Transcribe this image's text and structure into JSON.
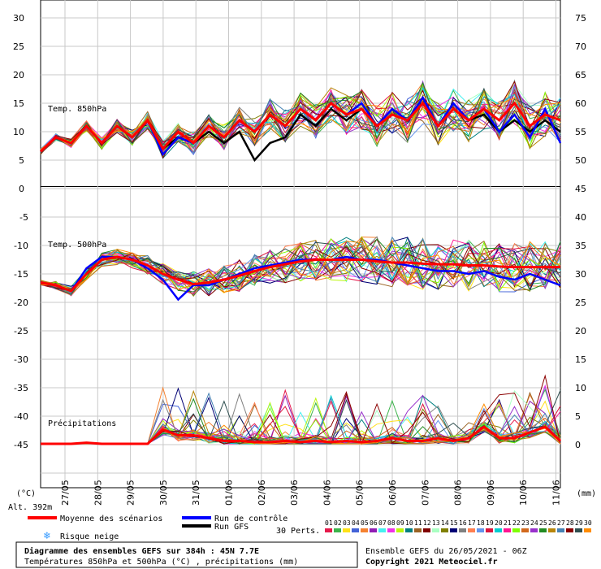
{
  "chart_data": {
    "type": "line",
    "panels": [
      {
        "label": "Temp. 850hPa",
        "left_axis": [
          30,
          25,
          20,
          15,
          10,
          5,
          0
        ],
        "right_axis": [
          75,
          70,
          65,
          60,
          55,
          50
        ],
        "ylim": [
          0,
          30
        ],
        "mean": [
          6.5,
          9,
          8,
          11,
          8,
          11,
          9,
          12,
          7,
          10,
          8,
          11,
          9,
          12,
          10,
          13,
          11,
          14,
          12,
          15,
          13,
          14,
          11,
          13,
          12,
          15,
          11,
          14,
          12,
          14,
          12,
          15,
          11,
          13,
          12
        ],
        "control": [
          6.5,
          9,
          8,
          11,
          8,
          11,
          9,
          12,
          6,
          9,
          8,
          11,
          9,
          12,
          10,
          13,
          11,
          14,
          12,
          15,
          13,
          15,
          11,
          14,
          12,
          16,
          11,
          15,
          12,
          14,
          10,
          13,
          9,
          14,
          8
        ],
        "gfs": [
          6.5,
          9,
          8,
          11,
          8,
          11,
          9,
          12,
          7,
          9,
          8,
          10,
          8,
          10,
          5,
          8,
          9,
          13,
          11,
          14,
          12,
          14,
          11,
          13,
          12,
          15,
          11,
          14,
          12,
          13,
          10,
          12,
          10,
          12,
          10
        ]
      },
      {
        "label": "Temp. 500hPa",
        "left_axis": [
          -5,
          -10,
          -15,
          -20,
          -25,
          -30,
          -35,
          -40,
          -45
        ],
        "right_axis": [
          45,
          40,
          35,
          30,
          25,
          20,
          15,
          10,
          5,
          0
        ],
        "mean": [
          -16.5,
          -17,
          -18,
          -15,
          -12.5,
          -12,
          -12.5,
          -13.5,
          -15,
          -16,
          -16.8,
          -16.5,
          -16,
          -15.3,
          -14.5,
          -13.8,
          -13.3,
          -12.8,
          -12.5,
          -12.5,
          -12.5,
          -12.5,
          -12.8,
          -13,
          -13,
          -13.2,
          -13.3,
          -13.3,
          -13.5,
          -13.5,
          -13.7,
          -13.8,
          -13.8,
          -13.8,
          -13.8
        ],
        "control": [
          -16.5,
          -17,
          -18,
          -14,
          -12,
          -12,
          -12.5,
          -14,
          -16,
          -19.5,
          -17,
          -17,
          -16,
          -15,
          -14,
          -13.5,
          -13,
          -12.5,
          -12.5,
          -12.5,
          -12,
          -12.5,
          -12.5,
          -13,
          -13.5,
          -14,
          -14.5,
          -14.5,
          -15,
          -14.5,
          -15.5,
          -16,
          -15,
          -16,
          -17
        ]
      }
    ],
    "precip": {
      "label": "Précipitations",
      "mean": [
        0,
        0,
        0,
        0.2,
        0,
        0,
        0,
        0,
        2.5,
        1.5,
        1.5,
        1,
        0.5,
        0.5,
        0.3,
        0.3,
        0.5,
        0.3,
        0.5,
        0.3,
        0.5,
        0.3,
        0.5,
        1,
        0.5,
        0.5,
        1,
        0.5,
        1,
        3,
        1,
        1,
        2,
        3,
        0.5
      ]
    },
    "x_labels": [
      "27/05",
      "28/05",
      "29/05",
      "30/05",
      "31/05",
      "01/06",
      "02/06",
      "03/06",
      "04/06",
      "05/06",
      "06/06",
      "07/06",
      "08/06",
      "09/06",
      "10/06",
      "11/06"
    ],
    "x_units_left": "(°C)",
    "x_units_right": "(mm)",
    "altitude": "Alt. 392m",
    "legend": {
      "mean": "Moyenne des scénarios",
      "control": "Run de contrôle",
      "gfs": "Run GFS",
      "snow": "Risque neige",
      "perts": "30 Perts.",
      "pert_numbers": [
        "01",
        "02",
        "03",
        "04",
        "05",
        "06",
        "07",
        "08",
        "09",
        "10",
        "11",
        "12",
        "13",
        "14",
        "15",
        "16",
        "17",
        "18",
        "19",
        "20",
        "21",
        "22",
        "23",
        "24",
        "25",
        "26",
        "27",
        "28",
        "29",
        "30"
      ],
      "colors": {
        "mean": "#ff0000",
        "control": "#0000ff",
        "gfs": "#000000"
      }
    },
    "footer": {
      "title": "Diagramme des ensembles GEFS sur 384h : 45N 7.7E",
      "subtitle": "Températures 850hPa et 500hPa (°C) , précipitations (mm)",
      "run": "Ensemble GEFS du 26/05/2021 - 06Z",
      "copyright": "Copyright 2021 Meteociel.fr"
    },
    "grid": true
  }
}
